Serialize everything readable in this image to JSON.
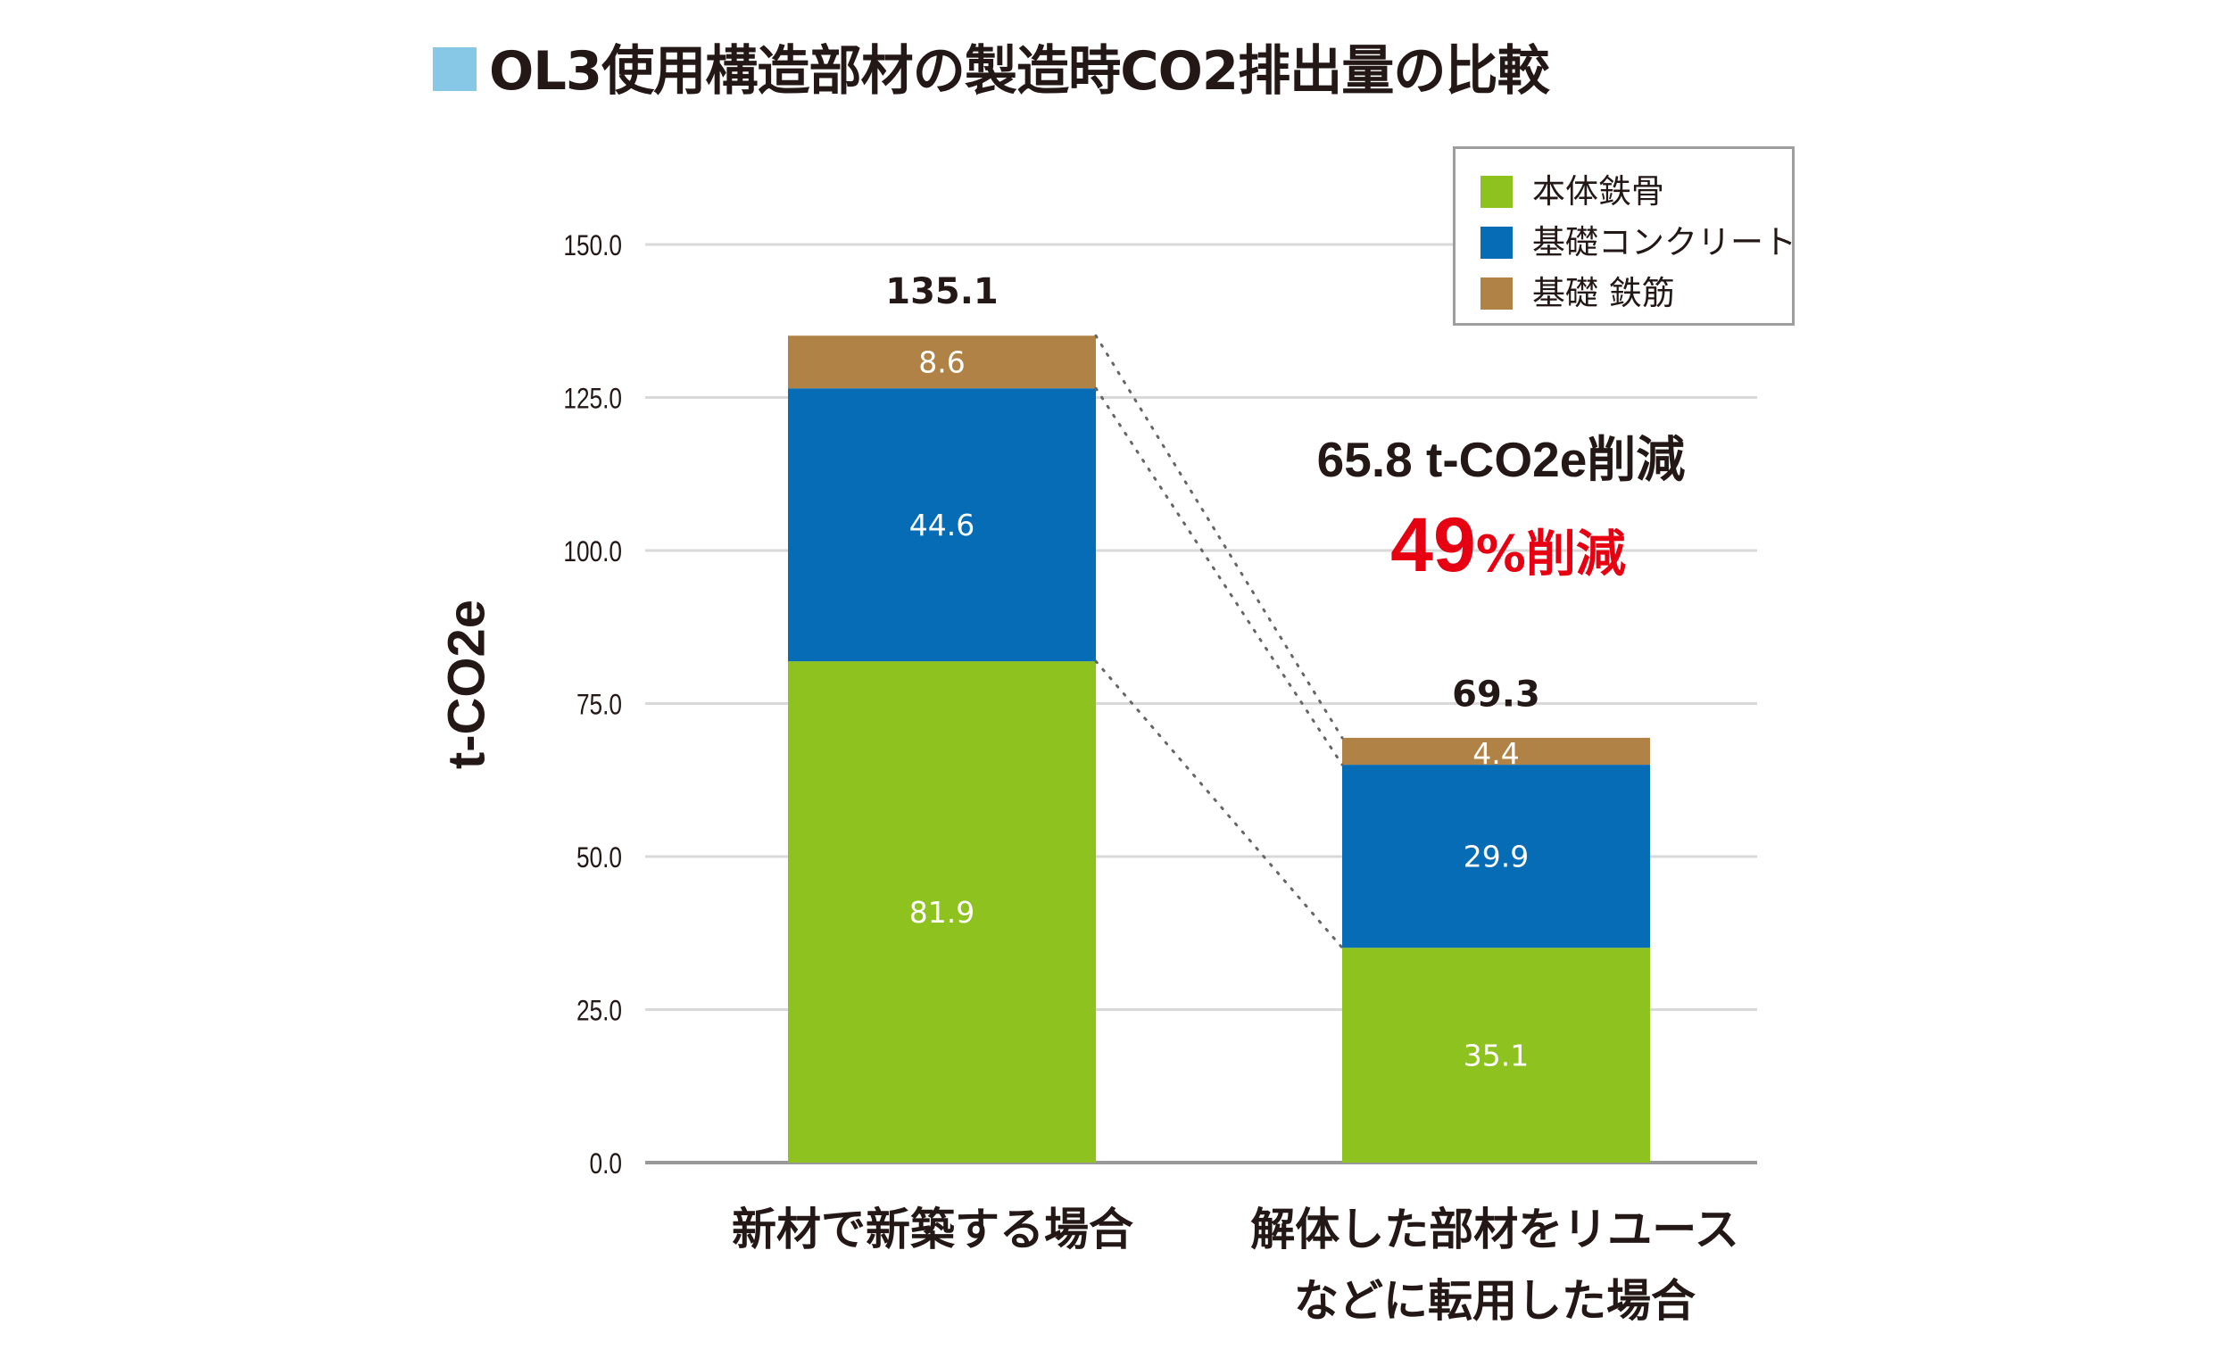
{
  "title": "OL3使用構造部材の製造時CO2排出量の比較",
  "colors": {
    "title_square": "#86c8e6",
    "steel_frame": "#8dc21f",
    "foundation_concrete": "#066cb6",
    "foundation_rebar": "#b08245",
    "reduction_red": "#e60012",
    "grid": "#d9d9d9",
    "axis": "#999999",
    "connector": "#666666"
  },
  "annotations": {
    "reduction_amount": "65.8 t-CO2e削減",
    "reduction_percent_number": "49",
    "reduction_percent_suffix": "%削減"
  },
  "chart_data": {
    "type": "bar",
    "stacked": true,
    "title": "OL3使用構造部材の製造時CO2排出量の比較",
    "xlabel": "",
    "ylabel": "t-CO2e",
    "ylim": [
      0,
      150
    ],
    "yticks": [
      "0.0",
      "25.0",
      "50.0",
      "75.0",
      "100.0",
      "125.0",
      "150.0"
    ],
    "ytick_values": [
      0,
      25,
      50,
      75,
      100,
      125,
      150
    ],
    "grid": true,
    "legend_position": "top-right",
    "categories": [
      [
        "新材で新築する場合"
      ],
      [
        "解体した部材をリユース",
        "などに転用した場合"
      ]
    ],
    "series": [
      {
        "name": "本体鉄骨",
        "color": "#8dc21f",
        "values": [
          81.9,
          35.1
        ],
        "labels": [
          "81.9",
          "35.1"
        ]
      },
      {
        "name": "基礎コンクリート",
        "color": "#066cb6",
        "values": [
          44.6,
          29.9
        ],
        "labels": [
          "44.6",
          "29.9"
        ]
      },
      {
        "name": "基礎 鉄筋",
        "color": "#b08245",
        "values": [
          8.6,
          4.4
        ],
        "labels": [
          "8.6",
          "4.4"
        ]
      }
    ],
    "totals": [
      135.1,
      69.3
    ],
    "total_labels": [
      "135.1",
      "69.3"
    ],
    "connectors": "dotted lines linking segment tops between bars"
  }
}
